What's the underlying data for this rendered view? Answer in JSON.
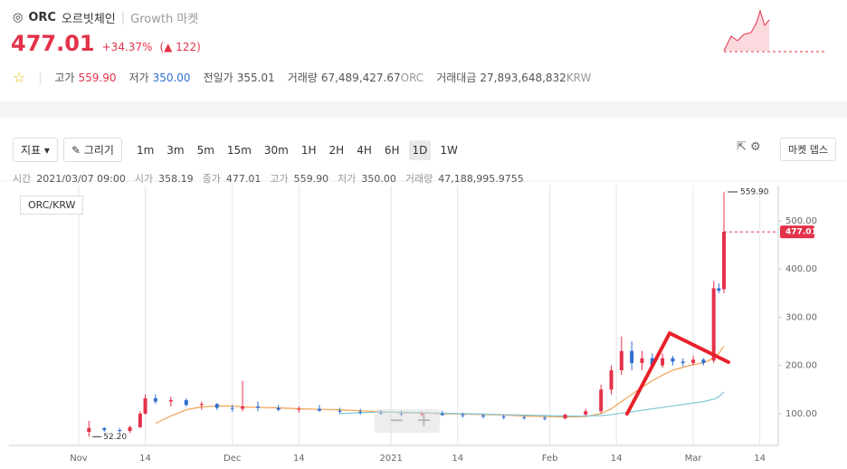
{
  "header": {
    "symbol": "ORC",
    "name": "오르빗체인",
    "market": "Growth 마켓",
    "price": "477.01",
    "change_pct": "+34.37%",
    "change": "▲ 122",
    "stats": [
      {
        "label": "고가",
        "value": "559.90"
      },
      {
        "label": "저가",
        "value": "350.00"
      },
      {
        "label": "전일가",
        "value": "355.01"
      },
      {
        "label": "거래량",
        "value": "67,489,427.67",
        "unit": "ORC"
      },
      {
        "label": "거래대금",
        "value": "27,893,648,832",
        "unit": "KRW"
      }
    ]
  },
  "toolbar": {
    "indicator": "지표",
    "draw": "그리기",
    "intervals": [
      "1m",
      "3m",
      "5m",
      "15m",
      "30m",
      "1H",
      "2H",
      "4H",
      "6H",
      "1D",
      "1W"
    ],
    "selected": "1D",
    "market_depth": "마켓 뎁스"
  },
  "info": [
    {
      "label": "시간",
      "value": "2021/03/07 09:00"
    },
    {
      "label": "시가",
      "value": "358.19"
    },
    {
      "label": "종가",
      "value": "477.01"
    },
    {
      "label": "고가",
      "value": "559.90"
    },
    {
      "label": "저가",
      "value": "350.00"
    },
    {
      "label": "거래량",
      "value": "47,188,995.9755"
    }
  ],
  "chart_data": {
    "type": "candlestick",
    "pair": "ORC/KRW",
    "up_color": "#e4324a",
    "down_color": "#2e6fd0",
    "x": [
      2,
      5,
      8,
      10,
      12,
      13,
      15,
      18,
      21,
      24,
      27,
      30,
      32,
      35,
      39,
      43,
      47,
      51,
      55,
      59,
      63,
      67,
      71,
      75,
      79,
      83,
      87,
      91,
      95,
      99,
      102,
      104,
      106,
      108,
      110,
      112,
      114,
      116,
      118,
      120,
      122,
      124,
      125,
      126
    ],
    "open": [
      62,
      70,
      66,
      64,
      72,
      100,
      132,
      125,
      128,
      118,
      120,
      112,
      110,
      115,
      112,
      108,
      110,
      106,
      104,
      102,
      100,
      98,
      100,
      97,
      96,
      94,
      92,
      91,
      90,
      98,
      105,
      150,
      190,
      230,
      205,
      215,
      200,
      215,
      208,
      205,
      212,
      210,
      360,
      358.19
    ],
    "high": [
      85,
      72,
      70,
      75,
      105,
      140,
      140,
      135,
      132,
      125,
      122,
      118,
      168,
      125,
      118,
      115,
      118,
      112,
      110,
      108,
      106,
      104,
      106,
      102,
      100,
      98,
      96,
      95,
      100,
      110,
      160,
      200,
      260,
      250,
      230,
      225,
      225,
      220,
      215,
      220,
      215,
      375,
      370,
      559.9
    ],
    "low": [
      52.2,
      62,
      60,
      60,
      70,
      98,
      120,
      115,
      115,
      108,
      108,
      104,
      105,
      105,
      105,
      102,
      104,
      100,
      98,
      97,
      95,
      94,
      95,
      92,
      90,
      88,
      88,
      86,
      88,
      95,
      100,
      140,
      180,
      190,
      190,
      195,
      195,
      200,
      198,
      200,
      200,
      205,
      350,
      350
    ],
    "close": [
      70,
      66,
      64,
      72,
      100,
      132,
      125,
      128,
      118,
      120,
      112,
      110,
      115,
      112,
      108,
      110,
      106,
      104,
      102,
      100,
      98,
      100,
      97,
      96,
      94,
      92,
      91,
      90,
      98,
      105,
      150,
      190,
      230,
      205,
      215,
      200,
      215,
      208,
      205,
      212,
      205,
      360,
      355,
      477.01
    ],
    "lines": [
      {
        "color": "#f0a050",
        "values": [
          null,
          null,
          null,
          null,
          null,
          null,
          80,
          95,
          108,
          114,
          116,
          116,
          114,
          113,
          112,
          110,
          109,
          108,
          106,
          104,
          102,
          101,
          100,
          99,
          98,
          97,
          95,
          94,
          93,
          94,
          100,
          110,
          125,
          140,
          155,
          168,
          180,
          190,
          196,
          202,
          205,
          215,
          225,
          240
        ]
      },
      {
        "color": "#7fc8d8",
        "values": [
          null,
          null,
          null,
          null,
          null,
          null,
          null,
          null,
          null,
          null,
          null,
          null,
          null,
          null,
          null,
          null,
          null,
          100,
          102,
          103,
          103,
          102,
          101,
          100,
          99,
          98,
          97,
          96,
          95,
          95,
          96,
          98,
          101,
          104,
          107,
          110,
          113,
          116,
          119,
          122,
          125,
          130,
          135,
          145
        ]
      }
    ],
    "max_label": "559.90",
    "min_label": "52.20",
    "last_label": "477.01",
    "ylim": [
      34,
      573
    ],
    "yticks": [
      {
        "value": 100,
        "label": "100.00"
      },
      {
        "value": 200,
        "label": "200.00"
      },
      {
        "value": 300,
        "label": "300.00"
      },
      {
        "value": 400,
        "label": "400.00"
      },
      {
        "value": 500,
        "label": "500.00"
      }
    ],
    "xlim": [
      -13.6,
      136.6
    ],
    "xticks": [
      {
        "value": 0,
        "label": "Nov"
      },
      {
        "value": 13,
        "label": "14"
      },
      {
        "value": 30,
        "label": "Dec"
      },
      {
        "value": 43,
        "label": "14"
      },
      {
        "value": 61,
        "label": "2021"
      },
      {
        "value": 74,
        "label": "14"
      },
      {
        "value": 92,
        "label": "Feb"
      },
      {
        "value": 105,
        "label": "14"
      },
      {
        "value": 120,
        "label": "Mar"
      },
      {
        "value": 133,
        "label": "14"
      }
    ]
  }
}
